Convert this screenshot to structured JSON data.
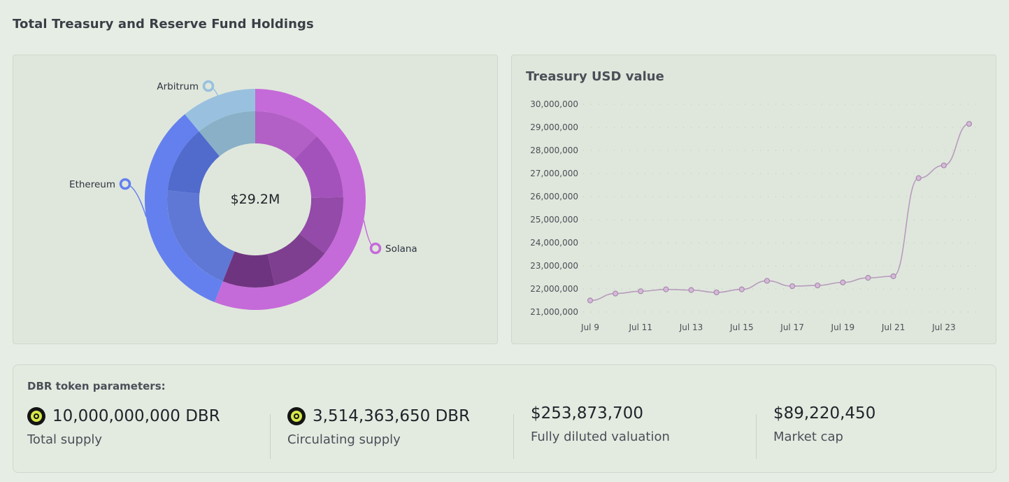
{
  "header": {
    "title": "Total Treasury and Reserve Fund Holdings"
  },
  "donut": {
    "center_label": "$29.2M",
    "colors": {
      "solana_outer": "#c56ad9",
      "ethereum_outer": "#6480ee",
      "arbitrum_outer": "#99c1df"
    }
  },
  "chart_data": [
    {
      "type": "pie",
      "title": "",
      "center_label": "$29.2M",
      "labels": [
        "Solana",
        "Ethereum",
        "Arbitrum"
      ],
      "values": [
        56,
        33,
        11
      ],
      "inner_ring": {
        "Solana": [
          9,
          9,
          8,
          8,
          7
        ],
        "Ethereum": [
          10,
          6
        ],
        "Arbitrum": [
          8
        ]
      }
    },
    {
      "type": "line",
      "title": "Treasury USD value",
      "categories": [
        "Jul 9",
        "Jul 10",
        "Jul 11",
        "Jul 12",
        "Jul 13",
        "Jul 14",
        "Jul 15",
        "Jul 16",
        "Jul 17",
        "Jul 18",
        "Jul 19",
        "Jul 20",
        "Jul 21",
        "Jul 22",
        "Jul 23",
        "Jul 24"
      ],
      "x_tick_labels": [
        "Jul 9",
        "Jul 11",
        "Jul 13",
        "Jul 15",
        "Jul 17",
        "Jul 19",
        "Jul 21",
        "Jul 23"
      ],
      "y_tick_labels": [
        "30,000,000",
        "29,000,000",
        "28,000,000",
        "27,000,000",
        "26,000,000",
        "25,000,000",
        "24,000,000",
        "23,000,000",
        "22,000,000",
        "21,000,000"
      ],
      "series": [
        {
          "values": [
            21500000,
            21800000,
            21900000,
            21980000,
            21950000,
            21850000,
            21980000,
            22350000,
            22120000,
            22150000,
            22280000,
            22480000,
            22550000,
            26800000,
            27350000,
            29150000
          ]
        }
      ],
      "ylim": [
        21000000,
        30000000
      ],
      "grid": "dotted-horizontal",
      "line_color": "#b79bbd"
    }
  ],
  "params": {
    "title": "DBR token parameters:",
    "items": [
      {
        "value": "10,000,000,000 DBR",
        "label": "Total supply",
        "icon": "dbr-token-icon"
      },
      {
        "value": "3,514,363,650 DBR",
        "label": "Circulating supply",
        "icon": "dbr-token-icon"
      },
      {
        "value": "$253,873,700",
        "label": "Fully diluted valuation"
      },
      {
        "value": "$89,220,450",
        "label": "Market cap"
      }
    ]
  }
}
